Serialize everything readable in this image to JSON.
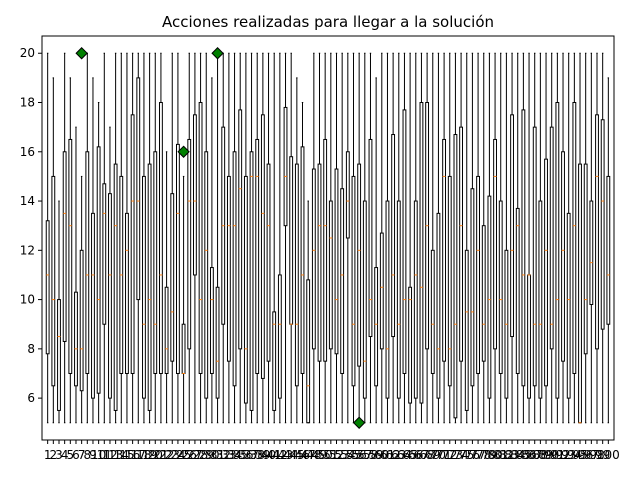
{
  "chart_data": {
    "type": "boxplot",
    "title": "Acciones realizadas para llegar a la solución",
    "xlabel": "",
    "ylabel": "",
    "ylim": [
      4.3,
      20.7
    ],
    "yticks": [
      6,
      8,
      10,
      12,
      14,
      16,
      18,
      20
    ],
    "categories": [
      "1",
      "2",
      "3",
      "4",
      "5",
      "6",
      "7",
      "8",
      "9",
      "10",
      "11",
      "12",
      "13",
      "14",
      "15",
      "16",
      "17",
      "18",
      "19",
      "20",
      "21",
      "22",
      "23",
      "24",
      "25",
      "26",
      "27",
      "28",
      "29",
      "30",
      "31",
      "32",
      "33",
      "34",
      "35",
      "36",
      "37",
      "38",
      "39",
      "40",
      "41",
      "42",
      "43",
      "44",
      "45",
      "46",
      "47",
      "48",
      "49",
      "50",
      "51",
      "52",
      "53",
      "54",
      "55",
      "56",
      "57",
      "58",
      "59",
      "60",
      "61",
      "62",
      "63",
      "64",
      "65",
      "66",
      "67",
      "68",
      "69",
      "70",
      "71",
      "72",
      "73",
      "74",
      "75",
      "76",
      "77",
      "78",
      "79",
      "80",
      "81",
      "82",
      "83",
      "84",
      "85",
      "86",
      "87",
      "88",
      "89",
      "90",
      "91",
      "92",
      "93",
      "94",
      "95",
      "96",
      "97",
      "98",
      "99",
      "100"
    ],
    "boxes": [
      {
        "whislo": 5,
        "q1": 7.8,
        "med": 11,
        "q3": 13.2,
        "whishi": 20
      },
      {
        "whislo": 5,
        "q1": 6.5,
        "med": 10,
        "q3": 15,
        "whishi": 19
      },
      {
        "whislo": 5,
        "q1": 5.5,
        "med": 8.5,
        "q3": 10,
        "whishi": 14
      },
      {
        "whislo": 5,
        "q1": 8.3,
        "med": 13.5,
        "q3": 16,
        "whishi": 20
      },
      {
        "whislo": 5,
        "q1": 7,
        "med": 13,
        "q3": 16.5,
        "whishi": 19
      },
      {
        "whislo": 5,
        "q1": 6.5,
        "med": 8,
        "q3": 10.3,
        "whishi": 17
      },
      {
        "whislo": 5,
        "q1": 6.3,
        "med": 8,
        "q3": 12,
        "whishi": 15
      },
      {
        "whislo": 5,
        "q1": 7,
        "med": 11,
        "q3": 16,
        "whishi": 20
      },
      {
        "whislo": 5,
        "q1": 6,
        "med": 11,
        "q3": 13.5,
        "whishi": 19
      },
      {
        "whislo": 5,
        "q1": 6.2,
        "med": 10,
        "q3": 16.2,
        "whishi": 18
      },
      {
        "whislo": 5,
        "q1": 9,
        "med": 13.5,
        "q3": 14.7,
        "whishi": 20
      },
      {
        "whislo": 5,
        "q1": 6,
        "med": 11,
        "q3": 14.3,
        "whishi": 17
      },
      {
        "whislo": 5,
        "q1": 5.5,
        "med": 13,
        "q3": 15.5,
        "whishi": 20
      },
      {
        "whislo": 5,
        "q1": 7,
        "med": 11,
        "q3": 15,
        "whishi": 20
      },
      {
        "whislo": 5,
        "q1": 7,
        "med": 12,
        "q3": 13.5,
        "whishi": 20
      },
      {
        "whislo": 5,
        "q1": 7,
        "med": 14,
        "q3": 17.5,
        "whishi": 20
      },
      {
        "whislo": 5,
        "q1": 10,
        "med": 14,
        "q3": 19,
        "whishi": 20
      },
      {
        "whislo": 5,
        "q1": 6,
        "med": 9,
        "q3": 15,
        "whishi": 20
      },
      {
        "whislo": 5,
        "q1": 5.5,
        "med": 10,
        "q3": 15.5,
        "whishi": 20
      },
      {
        "whislo": 5,
        "q1": 7,
        "med": 9,
        "q3": 16,
        "whishi": 20
      },
      {
        "whislo": 5,
        "q1": 7,
        "med": 11,
        "q3": 18,
        "whishi": 20
      },
      {
        "whislo": 5,
        "q1": 7,
        "med": 8,
        "q3": 10.5,
        "whishi": 16
      },
      {
        "whislo": 5,
        "q1": 7.5,
        "med": 9.5,
        "q3": 14.3,
        "whishi": 20
      },
      {
        "whislo": 5,
        "q1": 7,
        "med": 13.5,
        "q3": 16.3,
        "whishi": 20
      },
      {
        "whislo": 5,
        "q1": 7,
        "med": 7,
        "q3": 9,
        "whishi": 15
      },
      {
        "whislo": 5,
        "q1": 8,
        "med": 14,
        "q3": 16.5,
        "whishi": 20
      },
      {
        "whislo": 5,
        "q1": 11,
        "med": 14,
        "q3": 17.5,
        "whishi": 20
      },
      {
        "whislo": 5,
        "q1": 7,
        "med": 10,
        "q3": 18,
        "whishi": 20
      },
      {
        "whislo": 5,
        "q1": 6,
        "med": 12,
        "q3": 16,
        "whishi": 20
      },
      {
        "whislo": 5,
        "q1": 7,
        "med": 10,
        "q3": 11.3,
        "whishi": 19
      },
      {
        "whislo": 5,
        "q1": 6,
        "med": 7.5,
        "q3": 10.5,
        "whishi": 20
      },
      {
        "whislo": 5,
        "q1": 9,
        "med": 13,
        "q3": 17,
        "whishi": 20
      },
      {
        "whislo": 5,
        "q1": 7.5,
        "med": 13,
        "q3": 15,
        "whishi": 20
      },
      {
        "whislo": 5,
        "q1": 6.5,
        "med": 13,
        "q3": 16,
        "whishi": 20
      },
      {
        "whislo": 5,
        "q1": 8,
        "med": 14.5,
        "q3": 17.7,
        "whishi": 20
      },
      {
        "whislo": 5,
        "q1": 5.8,
        "med": 8,
        "q3": 15,
        "whishi": 20
      },
      {
        "whislo": 5,
        "q1": 5.5,
        "med": 15,
        "q3": 16,
        "whishi": 20
      },
      {
        "whislo": 5,
        "q1": 7,
        "med": 15,
        "q3": 16.5,
        "whishi": 20
      },
      {
        "whislo": 5,
        "q1": 6.8,
        "med": 13.5,
        "q3": 17.5,
        "whishi": 20
      },
      {
        "whislo": 5,
        "q1": 7.5,
        "med": 13,
        "q3": 15.5,
        "whishi": 20
      },
      {
        "whislo": 5,
        "q1": 5.5,
        "med": 9,
        "q3": 9.5,
        "whishi": 20
      },
      {
        "whislo": 5,
        "q1": 6,
        "med": 9,
        "q3": 11,
        "whishi": 20
      },
      {
        "whislo": 5,
        "q1": 13,
        "med": 15,
        "q3": 17.8,
        "whishi": 20
      },
      {
        "whislo": 5,
        "q1": 9,
        "med": 9,
        "q3": 15.8,
        "whishi": 20
      },
      {
        "whislo": 5,
        "q1": 6.5,
        "med": 9,
        "q3": 15.5,
        "whishi": 19
      },
      {
        "whislo": 5,
        "q1": 7,
        "med": 11,
        "q3": 16.2,
        "whishi": 18
      },
      {
        "whislo": 5,
        "q1": 5,
        "med": 6.5,
        "q3": 10.8,
        "whishi": 14
      },
      {
        "whislo": 5,
        "q1": 8,
        "med": 12,
        "q3": 15.3,
        "whishi": 20
      },
      {
        "whislo": 5,
        "q1": 7.5,
        "med": 13,
        "q3": 15.5,
        "whishi": 20
      },
      {
        "whislo": 5,
        "q1": 7.5,
        "med": 13,
        "q3": 16.5,
        "whishi": 20
      },
      {
        "whislo": 5,
        "q1": 8,
        "med": 12.5,
        "q3": 14,
        "whishi": 20
      },
      {
        "whislo": 5,
        "q1": 7.8,
        "med": 10,
        "q3": 15.3,
        "whishi": 20
      },
      {
        "whislo": 5,
        "q1": 7,
        "med": 11,
        "q3": 14.5,
        "whishi": 20
      },
      {
        "whislo": 5,
        "q1": 12.5,
        "med": 14,
        "q3": 16,
        "whishi": 20
      },
      {
        "whislo": 5,
        "q1": 6.5,
        "med": 9,
        "q3": 15,
        "whishi": 20
      },
      {
        "whislo": 5,
        "q1": 7.3,
        "med": 12,
        "q3": 15.5,
        "whishi": 20
      },
      {
        "whislo": 5,
        "q1": 6,
        "med": 7.5,
        "q3": 14,
        "whishi": 20
      },
      {
        "whislo": 5,
        "q1": 8.5,
        "med": 10,
        "q3": 16.5,
        "whishi": 20
      },
      {
        "whislo": 5,
        "q1": 6.5,
        "med": 9,
        "q3": 11.3,
        "whishi": 19
      },
      {
        "whislo": 5,
        "q1": 8,
        "med": 10.5,
        "q3": 12.7,
        "whishi": 20
      },
      {
        "whislo": 5,
        "q1": 6,
        "med": 8,
        "q3": 14,
        "whishi": 20
      },
      {
        "whislo": 5,
        "q1": 8.5,
        "med": 11,
        "q3": 16.7,
        "whishi": 20
      },
      {
        "whislo": 5,
        "q1": 6,
        "med": 9,
        "q3": 14,
        "whishi": 20
      },
      {
        "whislo": 5,
        "q1": 7,
        "med": 10,
        "q3": 17.7,
        "whishi": 20
      },
      {
        "whislo": 5,
        "q1": 5.8,
        "med": 10,
        "q3": 10.5,
        "whishi": 20
      },
      {
        "whislo": 5,
        "q1": 6,
        "med": 11,
        "q3": 14,
        "whishi": 20
      },
      {
        "whislo": 5,
        "q1": 5.8,
        "med": 10.5,
        "q3": 18,
        "whishi": 20
      },
      {
        "whislo": 5,
        "q1": 8,
        "med": 13,
        "q3": 18,
        "whishi": 20
      },
      {
        "whislo": 5,
        "q1": 7,
        "med": 9,
        "q3": 12,
        "whishi": 20
      },
      {
        "whislo": 5,
        "q1": 6,
        "med": 8,
        "q3": 13.5,
        "whishi": 20
      },
      {
        "whislo": 5,
        "q1": 7.5,
        "med": 15,
        "q3": 16.5,
        "whishi": 20
      },
      {
        "whislo": 5,
        "q1": 6.5,
        "med": 8,
        "q3": 15,
        "whishi": 20
      },
      {
        "whislo": 5,
        "q1": 5.2,
        "med": 9,
        "q3": 16.7,
        "whishi": 20
      },
      {
        "whislo": 5,
        "q1": 7.5,
        "med": 13,
        "q3": 17,
        "whishi": 20
      },
      {
        "whislo": 5,
        "q1": 5.5,
        "med": 9.5,
        "q3": 12,
        "whishi": 20
      },
      {
        "whislo": 5,
        "q1": 6.5,
        "med": 9.5,
        "q3": 14.5,
        "whishi": 20
      },
      {
        "whislo": 5,
        "q1": 7,
        "med": 12,
        "q3": 15,
        "whishi": 20
      },
      {
        "whislo": 5,
        "q1": 7.5,
        "med": 9,
        "q3": 13,
        "whishi": 20
      },
      {
        "whislo": 5,
        "q1": 6,
        "med": 10,
        "q3": 14.2,
        "whishi": 20
      },
      {
        "whislo": 5,
        "q1": 8,
        "med": 15,
        "q3": 16.5,
        "whishi": 20
      },
      {
        "whislo": 5,
        "q1": 7,
        "med": 10,
        "q3": 14,
        "whishi": 20
      },
      {
        "whislo": 5,
        "q1": 6,
        "med": 9,
        "q3": 12,
        "whishi": 20
      },
      {
        "whislo": 5,
        "q1": 8.5,
        "med": 12,
        "q3": 17.5,
        "whishi": 20
      },
      {
        "whislo": 5,
        "q1": 7,
        "med": 13,
        "q3": 13.7,
        "whishi": 20
      },
      {
        "whislo": 5,
        "q1": 6.5,
        "med": 11,
        "q3": 17.7,
        "whishi": 20
      },
      {
        "whislo": 5,
        "q1": 6,
        "med": 11,
        "q3": 11,
        "whishi": 20
      },
      {
        "whislo": 5,
        "q1": 6.5,
        "med": 9,
        "q3": 17,
        "whishi": 20
      },
      {
        "whislo": 5,
        "q1": 6,
        "med": 9,
        "q3": 14,
        "whishi": 20
      },
      {
        "whislo": 5,
        "q1": 6.5,
        "med": 12,
        "q3": 15.7,
        "whishi": 20
      },
      {
        "whislo": 5,
        "q1": 8,
        "med": 9,
        "q3": 17,
        "whishi": 20
      },
      {
        "whislo": 5,
        "q1": 6,
        "med": 10,
        "q3": 18,
        "whishi": 20
      },
      {
        "whislo": 5,
        "q1": 7.5,
        "med": 12,
        "q3": 16,
        "whishi": 20
      },
      {
        "whislo": 5,
        "q1": 6,
        "med": 10,
        "q3": 13.5,
        "whishi": 20
      },
      {
        "whislo": 5,
        "q1": 7,
        "med": 13,
        "q3": 18,
        "whishi": 20
      },
      {
        "whislo": 5,
        "q1": 5,
        "med": 5,
        "q3": 15.5,
        "whishi": 20
      },
      {
        "whislo": 5,
        "q1": 7.8,
        "med": 10,
        "q3": 15.5,
        "whishi": 20
      },
      {
        "whislo": 5,
        "q1": 9.8,
        "med": 11.5,
        "q3": 14,
        "whishi": 20
      },
      {
        "whislo": 5,
        "q1": 8,
        "med": 15,
        "q3": 17.5,
        "whishi": 20
      },
      {
        "whislo": 5,
        "q1": 8.8,
        "med": 14,
        "q3": 17.3,
        "whishi": 20
      },
      {
        "whislo": 5,
        "q1": 9,
        "med": 11,
        "q3": 15,
        "whishi": 19
      }
    ],
    "outliers": [
      {
        "box": 7,
        "value": 20
      },
      {
        "box": 25,
        "value": 16
      },
      {
        "box": 31,
        "value": 20
      },
      {
        "box": 56,
        "value": 5
      }
    ],
    "colors": {
      "box_edge": "#000000",
      "median": "#ff7f0e",
      "outlier_fill": "#008000",
      "background": "#ffffff"
    }
  }
}
